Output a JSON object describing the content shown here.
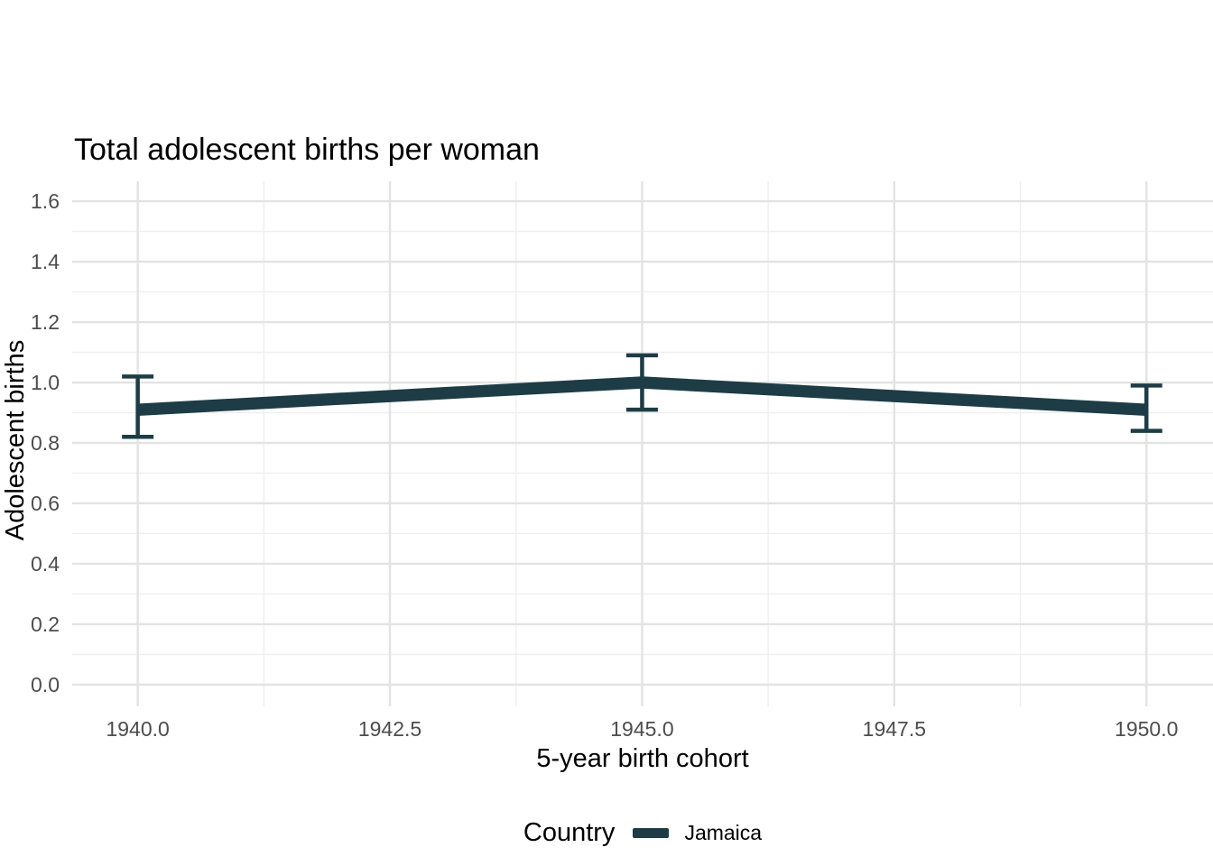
{
  "chart_data": {
    "type": "line",
    "title": "Total adolescent births per woman",
    "xlabel": "5-year birth cohort",
    "ylabel": "Adolescent births",
    "x": [
      1940,
      1945,
      1950
    ],
    "series": [
      {
        "name": "Jamaica",
        "color": "#1d3c46",
        "values": [
          0.91,
          1.0,
          0.91
        ],
        "ci_low": [
          0.82,
          0.91,
          0.84
        ],
        "ci_high": [
          1.02,
          1.09,
          0.99
        ]
      }
    ],
    "x_ticks": [
      1940.0,
      1942.5,
      1945.0,
      1947.5,
      1950.0
    ],
    "x_tick_labels": [
      "1940.0",
      "1942.5",
      "1945.0",
      "1947.5",
      "1950.0"
    ],
    "y_ticks": [
      0.0,
      0.2,
      0.4,
      0.6,
      0.8,
      1.0,
      1.2,
      1.4,
      1.6
    ],
    "y_tick_labels": [
      "0.0",
      "0.2",
      "0.4",
      "0.6",
      "0.8",
      "1.0",
      "1.2",
      "1.4",
      "1.6"
    ],
    "xlim": [
      1939.35,
      1950.66
    ],
    "ylim": [
      -0.072,
      1.666
    ],
    "grid": true,
    "error_bars": true,
    "legend_position": "bottom"
  },
  "legend": {
    "title": "Country",
    "items": [
      {
        "label": "Jamaica",
        "color": "#1d3c46"
      }
    ]
  },
  "style": {
    "background": "#ffffff",
    "grid_major_color": "#e3e3e3",
    "grid_minor_color": "#efefef",
    "tick_label_color": "#4d4d4d",
    "text_color": "#000000",
    "series_color": "#1d3c46"
  }
}
